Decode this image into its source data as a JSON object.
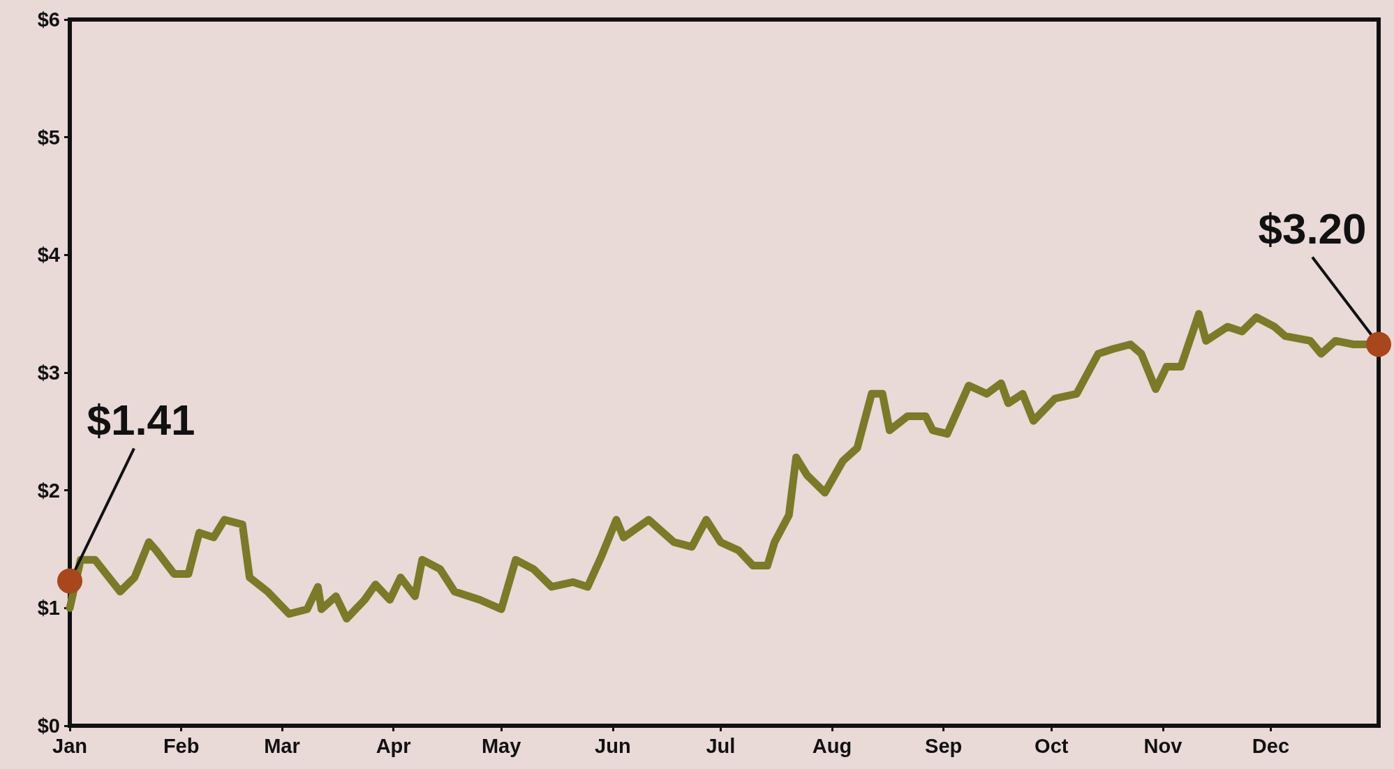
{
  "chart_data": {
    "type": "line",
    "x": [
      "--01-01",
      "--01-04",
      "--01-08",
      "--01-15",
      "--01-19",
      "--01-23",
      "--01-25",
      "--01-30",
      "--02-03",
      "--02-06",
      "--02-10",
      "--02-13",
      "--02-18",
      "--02-20",
      "--02-25",
      "--03-03",
      "--03-08",
      "--03-11",
      "--03-12",
      "--03-16",
      "--03-19",
      "--03-24",
      "--03-27",
      "--03-31",
      "--04-03",
      "--04-07",
      "--04-09",
      "--04-14",
      "--04-18",
      "--04-25",
      "--05-01",
      "--05-05",
      "--05-10",
      "--05-15",
      "--05-21",
      "--05-25",
      "--05-29",
      "--06-02",
      "--06-04",
      "--06-11",
      "--06-18",
      "--06-23",
      "--06-27",
      "--07-01",
      "--07-06",
      "--07-10",
      "--07-14",
      "--07-16",
      "--07-20",
      "--07-22",
      "--07-25",
      "--07-30",
      "--08-04",
      "--08-08",
      "--08-12",
      "--08-15",
      "--08-17",
      "--08-22",
      "--08-27",
      "--08-29",
      "--09-02",
      "--09-08",
      "--09-13",
      "--09-17",
      "--09-19",
      "--09-23",
      "--09-26",
      "--10-02",
      "--10-08",
      "--10-14",
      "--10-18",
      "--10-23",
      "--10-26",
      "--10-30",
      "--11-02",
      "--11-06",
      "--11-11",
      "--11-13",
      "--11-19",
      "--11-23",
      "--11-27",
      "--12-02",
      "--12-05",
      "--12-12",
      "--12-15",
      "--12-19",
      "--12-24",
      "--12-31"
    ],
    "series": [
      {
        "color": "#7a7a28",
        "values": [
          1.0,
          1.41,
          1.41,
          1.14,
          1.26,
          1.56,
          1.49,
          1.29,
          1.29,
          1.64,
          1.6,
          1.75,
          1.71,
          1.26,
          1.14,
          0.95,
          0.99,
          1.18,
          0.99,
          1.1,
          0.91,
          1.07,
          1.2,
          1.07,
          1.26,
          1.1,
          1.41,
          1.33,
          1.14,
          1.07,
          0.99,
          1.41,
          1.33,
          1.18,
          1.22,
          1.18,
          1.45,
          1.75,
          1.6,
          1.75,
          1.56,
          1.52,
          1.75,
          1.56,
          1.49,
          1.36,
          1.36,
          1.56,
          1.79,
          2.28,
          2.13,
          1.98,
          2.25,
          2.36,
          2.82,
          2.82,
          2.51,
          2.63,
          2.63,
          2.51,
          2.48,
          2.89,
          2.82,
          2.91,
          2.74,
          2.82,
          2.59,
          2.78,
          2.82,
          3.16,
          3.2,
          3.24,
          3.16,
          2.86,
          3.05,
          3.05,
          3.5,
          3.27,
          3.39,
          3.35,
          3.47,
          3.39,
          3.31,
          3.27,
          3.16,
          3.27,
          3.24,
          3.24
        ]
      }
    ],
    "xlim": [
      "--01-01",
      "--12-31"
    ],
    "xticks": [
      {
        "value": "--01-01",
        "label": "Jan"
      },
      {
        "value": "--02-01",
        "label": "Feb"
      },
      {
        "value": "--03-01",
        "label": "Mar"
      },
      {
        "value": "--04-01",
        "label": "Apr"
      },
      {
        "value": "--05-01",
        "label": "May"
      },
      {
        "value": "--06-01",
        "label": "Jun"
      },
      {
        "value": "--07-01",
        "label": "Jul"
      },
      {
        "value": "--08-01",
        "label": "Aug"
      },
      {
        "value": "--09-01",
        "label": "Sep"
      },
      {
        "value": "--10-01",
        "label": "Oct"
      },
      {
        "value": "--11-01",
        "label": "Nov"
      },
      {
        "value": "--12-01",
        "label": "Dec"
      }
    ],
    "ylim": [
      0,
      6
    ],
    "yticks": [
      {
        "value": 0,
        "label": "$0"
      },
      {
        "value": 1,
        "label": "$1"
      },
      {
        "value": 2,
        "label": "$2"
      },
      {
        "value": 3,
        "label": "$3"
      },
      {
        "value": 4,
        "label": "$4"
      },
      {
        "value": 5,
        "label": "$5"
      },
      {
        "value": 6,
        "label": "$6"
      }
    ],
    "annotations": [
      {
        "text": "$1.41",
        "x": "--01-01",
        "y": 1.23
      },
      {
        "text": "$3.20",
        "x": "--12-31",
        "y": 3.24
      }
    ],
    "grid": false,
    "line_style": "solid"
  }
}
